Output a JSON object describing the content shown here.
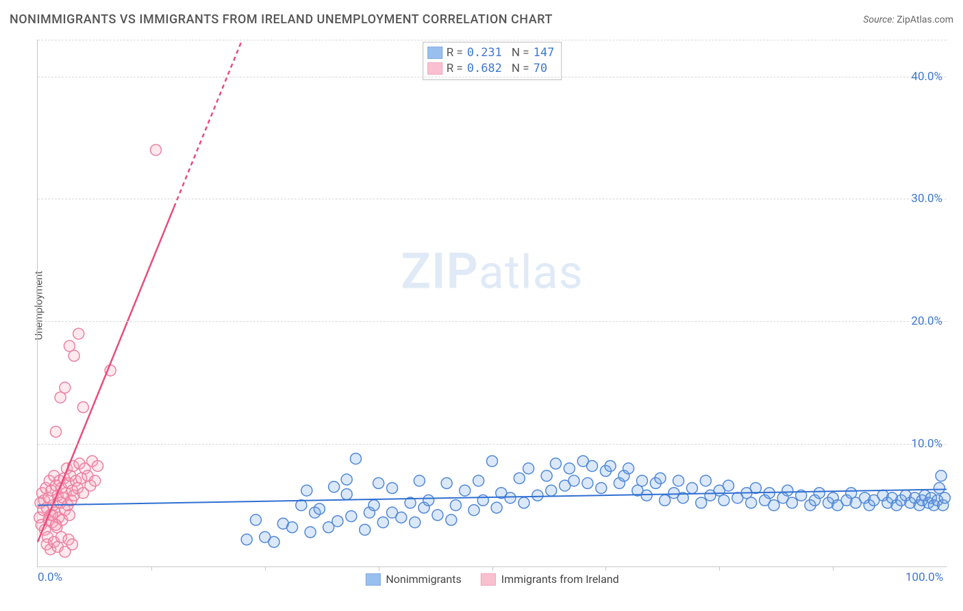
{
  "title": "NONIMMIGRANTS VS IMMIGRANTS FROM IRELAND UNEMPLOYMENT CORRELATION CHART",
  "source_prefix": "Source: ",
  "source_name": "ZipAtlas.com",
  "ylabel": "Unemployment",
  "watermark_zip": "ZIP",
  "watermark_atlas": "atlas",
  "chart": {
    "type": "scatter",
    "xlim": [
      0,
      100
    ],
    "ylim": [
      0,
      43
    ],
    "x_ticks": [
      0,
      100
    ],
    "x_tick_labels": [
      "0.0%",
      "100.0%"
    ],
    "x_minor_ticks": [
      12.5,
      25,
      37.5,
      50,
      62.5,
      75,
      87.5
    ],
    "y_ticks": [
      10,
      20,
      30,
      40
    ],
    "y_tick_labels": [
      "10.0%",
      "20.0%",
      "30.0%",
      "40.0%"
    ],
    "background_color": "#ffffff",
    "grid_color": "#d8d8d8",
    "axis_color": "#c7c7c7",
    "tick_label_color": "#3f77d1",
    "marker_radius": 8,
    "marker_stroke_width": 1.5,
    "marker_fill_opacity": 0.25,
    "series": [
      {
        "name": "Nonimmigrants",
        "color": "#6fa4e8",
        "stroke": "#4f87d6",
        "r": 0.231,
        "n": 147,
        "trend": {
          "x1": 0,
          "y1": 5.0,
          "x2": 100,
          "y2": 6.3,
          "color": "#2f6fd1",
          "width": 2,
          "dashed_after_x": null
        },
        "points": [
          [
            23,
            2.2
          ],
          [
            24,
            3.8
          ],
          [
            25,
            2.4
          ],
          [
            26,
            2.0
          ],
          [
            27,
            3.5
          ],
          [
            28,
            3.2
          ],
          [
            29,
            5.0
          ],
          [
            29.6,
            6.2
          ],
          [
            30,
            2.8
          ],
          [
            30.5,
            4.4
          ],
          [
            31,
            4.7
          ],
          [
            32,
            3.2
          ],
          [
            32.6,
            6.5
          ],
          [
            33,
            3.7
          ],
          [
            34,
            5.9
          ],
          [
            34,
            7.1
          ],
          [
            34.5,
            4.1
          ],
          [
            35,
            8.8
          ],
          [
            36,
            3.0
          ],
          [
            36.5,
            4.4
          ],
          [
            37,
            5.0
          ],
          [
            37.5,
            6.8
          ],
          [
            38,
            3.6
          ],
          [
            39,
            4.4
          ],
          [
            39,
            6.4
          ],
          [
            40,
            4.0
          ],
          [
            41,
            5.2
          ],
          [
            41.5,
            3.6
          ],
          [
            42,
            7.0
          ],
          [
            42.5,
            4.8
          ],
          [
            43,
            5.4
          ],
          [
            44,
            4.2
          ],
          [
            45,
            6.8
          ],
          [
            45.5,
            3.8
          ],
          [
            46,
            5.0
          ],
          [
            47,
            6.2
          ],
          [
            48,
            4.6
          ],
          [
            48.5,
            7.0
          ],
          [
            49,
            5.4
          ],
          [
            50,
            8.6
          ],
          [
            50.5,
            4.8
          ],
          [
            51,
            6.0
          ],
          [
            52,
            5.6
          ],
          [
            53,
            7.2
          ],
          [
            53.5,
            5.2
          ],
          [
            54,
            8.0
          ],
          [
            55,
            5.8
          ],
          [
            56,
            7.4
          ],
          [
            56.5,
            6.2
          ],
          [
            57,
            8.4
          ],
          [
            58,
            6.6
          ],
          [
            58.5,
            8.0
          ],
          [
            59,
            7.0
          ],
          [
            60,
            8.6
          ],
          [
            60.5,
            6.8
          ],
          [
            61,
            8.2
          ],
          [
            62,
            6.4
          ],
          [
            62.5,
            7.8
          ],
          [
            63,
            8.2
          ],
          [
            64,
            6.8
          ],
          [
            64.5,
            7.4
          ],
          [
            65,
            8.0
          ],
          [
            66,
            6.2
          ],
          [
            66.5,
            7.0
          ],
          [
            67,
            5.8
          ],
          [
            68,
            6.8
          ],
          [
            68.5,
            7.2
          ],
          [
            69,
            5.4
          ],
          [
            70,
            6.0
          ],
          [
            70.5,
            7.0
          ],
          [
            71,
            5.6
          ],
          [
            72,
            6.4
          ],
          [
            73,
            5.2
          ],
          [
            73.5,
            7.0
          ],
          [
            74,
            5.8
          ],
          [
            75,
            6.2
          ],
          [
            75.5,
            5.4
          ],
          [
            76,
            6.6
          ],
          [
            77,
            5.6
          ],
          [
            78,
            6.0
          ],
          [
            78.5,
            5.2
          ],
          [
            79,
            6.4
          ],
          [
            80,
            5.4
          ],
          [
            80.5,
            6.0
          ],
          [
            81,
            5.0
          ],
          [
            82,
            5.6
          ],
          [
            82.5,
            6.2
          ],
          [
            83,
            5.2
          ],
          [
            84,
            5.8
          ],
          [
            85,
            5.0
          ],
          [
            85.5,
            5.4
          ],
          [
            86,
            6.0
          ],
          [
            87,
            5.2
          ],
          [
            87.5,
            5.6
          ],
          [
            88,
            5.0
          ],
          [
            89,
            5.4
          ],
          [
            89.5,
            6.0
          ],
          [
            90,
            5.2
          ],
          [
            91,
            5.6
          ],
          [
            91.5,
            5.0
          ],
          [
            92,
            5.4
          ],
          [
            93,
            5.8
          ],
          [
            93.5,
            5.2
          ],
          [
            94,
            5.6
          ],
          [
            94.5,
            5.0
          ],
          [
            95,
            5.4
          ],
          [
            95.5,
            5.8
          ],
          [
            96,
            5.2
          ],
          [
            96.5,
            5.6
          ],
          [
            97,
            5.0
          ],
          [
            97.3,
            5.4
          ],
          [
            97.6,
            5.8
          ],
          [
            98,
            5.2
          ],
          [
            98.3,
            5.6
          ],
          [
            98.6,
            5.0
          ],
          [
            99,
            5.4
          ],
          [
            99.2,
            6.4
          ],
          [
            99.4,
            7.4
          ],
          [
            99.6,
            5.0
          ],
          [
            99.8,
            5.6
          ]
        ]
      },
      {
        "name": "Immigrants from Ireland",
        "color": "#f7a7bd",
        "stroke": "#ec7fa0",
        "r": 0.682,
        "n": 70,
        "trend": {
          "x1": 0,
          "y1": 2.0,
          "x2": 22.5,
          "y2": 43,
          "color": "#e94b7a",
          "width": 2.5,
          "dashed_after_x": 15
        },
        "points": [
          [
            0.2,
            4.0
          ],
          [
            0.3,
            5.2
          ],
          [
            0.4,
            3.4
          ],
          [
            0.5,
            6.0
          ],
          [
            0.6,
            4.6
          ],
          [
            0.7,
            5.4
          ],
          [
            0.8,
            3.0
          ],
          [
            0.9,
            6.4
          ],
          [
            1.0,
            4.8
          ],
          [
            1.1,
            2.4
          ],
          [
            1.2,
            5.6
          ],
          [
            1.3,
            7.0
          ],
          [
            1.4,
            4.2
          ],
          [
            1.5,
            6.2
          ],
          [
            1.6,
            3.6
          ],
          [
            1.7,
            5.0
          ],
          [
            1.8,
            7.4
          ],
          [
            1.9,
            4.4
          ],
          [
            2.0,
            6.6
          ],
          [
            2.1,
            3.2
          ],
          [
            2.2,
            5.8
          ],
          [
            2.3,
            4.0
          ],
          [
            2.4,
            7.0
          ],
          [
            2.5,
            5.2
          ],
          [
            2.6,
            6.4
          ],
          [
            2.7,
            3.8
          ],
          [
            2.8,
            5.6
          ],
          [
            2.9,
            7.2
          ],
          [
            3.0,
            4.6
          ],
          [
            3.1,
            6.0
          ],
          [
            3.2,
            8.0
          ],
          [
            3.3,
            5.0
          ],
          [
            3.4,
            6.8
          ],
          [
            3.5,
            4.2
          ],
          [
            3.6,
            7.4
          ],
          [
            3.7,
            5.4
          ],
          [
            3.8,
            6.2
          ],
          [
            3.9,
            8.2
          ],
          [
            4.0,
            5.8
          ],
          [
            4.2,
            7.0
          ],
          [
            4.4,
            6.4
          ],
          [
            4.6,
            8.4
          ],
          [
            4.8,
            7.2
          ],
          [
            5.0,
            6.0
          ],
          [
            5.2,
            8.0
          ],
          [
            5.5,
            7.4
          ],
          [
            5.8,
            6.6
          ],
          [
            6.0,
            8.6
          ],
          [
            6.3,
            7.0
          ],
          [
            6.6,
            8.2
          ],
          [
            1.0,
            1.8
          ],
          [
            1.4,
            1.4
          ],
          [
            1.8,
            2.0
          ],
          [
            2.2,
            1.6
          ],
          [
            2.6,
            2.4
          ],
          [
            3.0,
            1.2
          ],
          [
            3.4,
            2.2
          ],
          [
            3.8,
            1.8
          ],
          [
            2.0,
            11.0
          ],
          [
            2.5,
            13.8
          ],
          [
            3.0,
            14.6
          ],
          [
            3.5,
            18.0
          ],
          [
            4.0,
            17.2
          ],
          [
            5.0,
            13.0
          ],
          [
            4.5,
            19.0
          ],
          [
            8.0,
            16.0
          ],
          [
            13.0,
            34.0
          ],
          [
            1.2,
            3.8
          ],
          [
            1.6,
            4.2
          ],
          [
            2.0,
            3.4
          ]
        ]
      }
    ]
  },
  "legend": {
    "series1": "Nonimmigrants",
    "series2": "Immigrants from Ireland"
  },
  "stats_labels": {
    "r": "R =",
    "n": "N ="
  }
}
